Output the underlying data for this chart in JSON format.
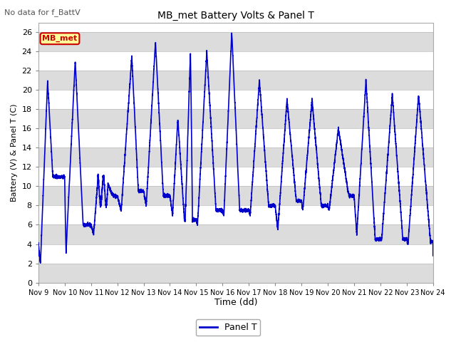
{
  "title": "MB_met Battery Volts & Panel T",
  "no_data_label": "No data for f_BattV",
  "ylabel": "Battery (V) & Panel T (C)",
  "xlabel": "Time (dd)",
  "legend_label": "Panel T",
  "legend_color": "#0000CC",
  "inset_label": "MB_met",
  "inset_bg": "#FFFF99",
  "inset_border": "#CC0000",
  "ylim": [
    0,
    27
  ],
  "yticks": [
    0,
    2,
    4,
    6,
    8,
    10,
    12,
    14,
    16,
    18,
    20,
    22,
    24,
    26
  ],
  "x_labels": [
    "Nov 9",
    "Nov 10",
    "Nov 11",
    "Nov 12",
    "Nov 13",
    "Nov 14",
    "Nov 15",
    "Nov 16",
    "Nov 17",
    "Nov 18",
    "Nov 19",
    "Nov 20",
    "Nov 21",
    "Nov 22",
    "Nov 23",
    "Nov 24"
  ],
  "line_color": "#0000CC",
  "line_width": 1.2,
  "plot_bg": "#FFFFFF",
  "fig_bg": "#FFFFFF",
  "band_color": "#DCDCDC",
  "white_color": "#FFFFFF"
}
